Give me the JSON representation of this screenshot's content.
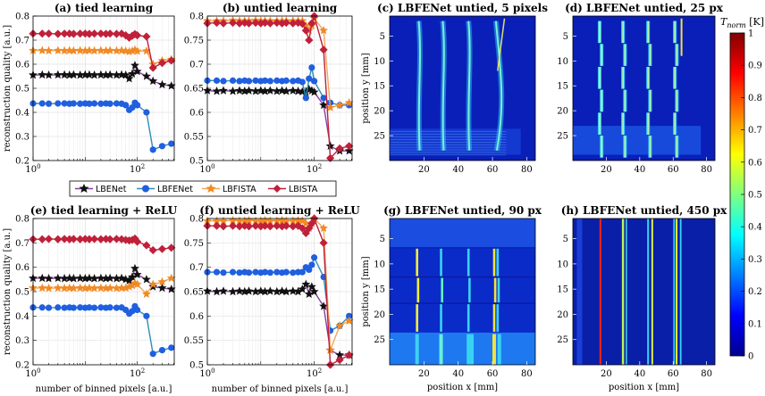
{
  "chart_data": [
    {
      "type": "line",
      "title": "(a) tied learning",
      "xlabel": "",
      "ylabel": "reconstruction quality [a.u.]",
      "xscale": "log",
      "xlim": [
        1,
        512
      ],
      "ylim": [
        0.2,
        0.8
      ],
      "xticks": [
        "10^0",
        "10^2"
      ],
      "yticks": [
        "0.2",
        "0.3",
        "0.4",
        "0.5",
        "0.6",
        "0.7",
        "0.8"
      ],
      "x": [
        1,
        1.5,
        2,
        3,
        4,
        5,
        6,
        8,
        10,
        12,
        15,
        20,
        25,
        30,
        40,
        50,
        60,
        70,
        80,
        90,
        100,
        150,
        200,
        300,
        450
      ],
      "series": [
        {
          "name": "LBENet",
          "values": [
            0.555,
            0.556,
            0.555,
            0.556,
            0.556,
            0.555,
            0.556,
            0.555,
            0.556,
            0.556,
            0.555,
            0.556,
            0.555,
            0.556,
            0.555,
            0.556,
            0.555,
            0.54,
            0.56,
            0.595,
            0.57,
            0.55,
            0.53,
            0.515,
            0.51
          ]
        },
        {
          "name": "LBFENet",
          "values": [
            0.437,
            0.437,
            0.436,
            0.437,
            0.437,
            0.436,
            0.437,
            0.436,
            0.437,
            0.436,
            0.437,
            0.436,
            0.437,
            0.436,
            0.437,
            0.436,
            0.43,
            0.41,
            0.42,
            0.44,
            0.43,
            0.4,
            0.245,
            0.26,
            0.27
          ]
        },
        {
          "name": "LBFISTA",
          "values": [
            0.657,
            0.657,
            0.656,
            0.657,
            0.656,
            0.657,
            0.656,
            0.657,
            0.656,
            0.657,
            0.656,
            0.657,
            0.656,
            0.657,
            0.656,
            0.657,
            0.655,
            0.652,
            0.655,
            0.66,
            0.654,
            0.655,
            0.6,
            0.615,
            0.62
          ]
        },
        {
          "name": "LBISTA",
          "values": [
            0.727,
            0.727,
            0.727,
            0.726,
            0.727,
            0.727,
            0.726,
            0.727,
            0.727,
            0.726,
            0.727,
            0.727,
            0.726,
            0.727,
            0.726,
            0.727,
            0.72,
            0.71,
            0.718,
            0.725,
            0.72,
            0.715,
            0.585,
            0.605,
            0.615
          ]
        }
      ]
    },
    {
      "type": "line",
      "title": "(b) untied learning",
      "xlabel": "",
      "ylabel": "",
      "xscale": "log",
      "xlim": [
        1,
        512
      ],
      "ylim": [
        0.5,
        0.8
      ],
      "xticks": [
        "10^0",
        "10^2"
      ],
      "yticks": [
        "0.5",
        "0.55",
        "0.6",
        "0.65",
        "0.7",
        "0.75",
        "0.8"
      ],
      "x": [
        1,
        1.5,
        2,
        3,
        4,
        5,
        6,
        8,
        10,
        12,
        15,
        20,
        25,
        30,
        40,
        50,
        60,
        70,
        80,
        90,
        100,
        150,
        200,
        300,
        450
      ],
      "series": [
        {
          "name": "LBENet",
          "values": [
            0.645,
            0.644,
            0.645,
            0.644,
            0.645,
            0.644,
            0.645,
            0.644,
            0.645,
            0.644,
            0.645,
            0.644,
            0.645,
            0.644,
            0.645,
            0.644,
            0.643,
            0.642,
            0.648,
            0.645,
            0.642,
            0.615,
            0.53,
            0.52,
            0.52
          ]
        },
        {
          "name": "LBFENet",
          "values": [
            0.666,
            0.666,
            0.665,
            0.666,
            0.665,
            0.666,
            0.665,
            0.666,
            0.665,
            0.666,
            0.665,
            0.666,
            0.665,
            0.666,
            0.665,
            0.666,
            0.663,
            0.63,
            0.67,
            0.693,
            0.665,
            0.63,
            0.62,
            0.615,
            0.615
          ]
        },
        {
          "name": "LBFISTA",
          "values": [
            0.79,
            0.79,
            0.79,
            0.791,
            0.79,
            0.79,
            0.79,
            0.791,
            0.79,
            0.79,
            0.79,
            0.79,
            0.79,
            0.79,
            0.79,
            0.79,
            0.79,
            0.78,
            0.77,
            0.78,
            0.795,
            0.77,
            0.61,
            0.615,
            0.62
          ]
        },
        {
          "name": "LBISTA",
          "values": [
            0.785,
            0.786,
            0.785,
            0.786,
            0.785,
            0.786,
            0.785,
            0.786,
            0.785,
            0.786,
            0.785,
            0.786,
            0.785,
            0.786,
            0.785,
            0.786,
            0.784,
            0.77,
            0.75,
            0.785,
            0.8,
            0.73,
            0.505,
            0.525,
            0.53
          ]
        }
      ]
    },
    {
      "type": "line",
      "title": "(e) tied learning + ReLU",
      "xlabel": "number of binned pixels [a.u.]",
      "ylabel": "reconstruction quality [a.u.]",
      "xscale": "log",
      "xlim": [
        1,
        512
      ],
      "ylim": [
        0.2,
        0.8
      ],
      "xticks": [
        "10^0",
        "10^2"
      ],
      "yticks": [
        "0.2",
        "0.3",
        "0.4",
        "0.5",
        "0.6",
        "0.7",
        "0.8"
      ],
      "x": [
        1,
        1.5,
        2,
        3,
        4,
        5,
        6,
        8,
        10,
        12,
        15,
        20,
        25,
        30,
        40,
        50,
        60,
        70,
        80,
        90,
        100,
        150,
        200,
        300,
        450
      ],
      "series": [
        {
          "name": "LBENet",
          "values": [
            0.555,
            0.555,
            0.554,
            0.555,
            0.554,
            0.555,
            0.554,
            0.555,
            0.554,
            0.555,
            0.554,
            0.555,
            0.554,
            0.555,
            0.554,
            0.555,
            0.55,
            0.545,
            0.56,
            0.595,
            0.57,
            0.55,
            0.52,
            0.515,
            0.51
          ]
        },
        {
          "name": "LBFENet",
          "values": [
            0.435,
            0.435,
            0.434,
            0.435,
            0.434,
            0.435,
            0.434,
            0.435,
            0.434,
            0.435,
            0.434,
            0.435,
            0.434,
            0.435,
            0.434,
            0.435,
            0.425,
            0.41,
            0.42,
            0.44,
            0.425,
            0.4,
            0.245,
            0.26,
            0.27
          ]
        },
        {
          "name": "LBFISTA",
          "values": [
            0.515,
            0.515,
            0.514,
            0.515,
            0.514,
            0.515,
            0.514,
            0.515,
            0.514,
            0.515,
            0.514,
            0.515,
            0.514,
            0.515,
            0.514,
            0.515,
            0.515,
            0.52,
            0.525,
            0.535,
            0.53,
            0.49,
            0.53,
            0.54,
            0.555
          ]
        },
        {
          "name": "LBISTA",
          "values": [
            0.715,
            0.715,
            0.716,
            0.715,
            0.716,
            0.715,
            0.716,
            0.715,
            0.716,
            0.715,
            0.716,
            0.715,
            0.716,
            0.715,
            0.716,
            0.715,
            0.712,
            0.71,
            0.712,
            0.718,
            0.705,
            0.69,
            0.67,
            0.675,
            0.68
          ]
        }
      ]
    },
    {
      "type": "line",
      "title": "(f) untied learning + ReLU",
      "xlabel": "number of binned pixels [a.u.]",
      "ylabel": "",
      "xscale": "log",
      "xlim": [
        1,
        512
      ],
      "ylim": [
        0.5,
        0.8
      ],
      "xticks": [
        "10^0",
        "10^2"
      ],
      "yticks": [
        "0.5",
        "0.55",
        "0.6",
        "0.65",
        "0.7",
        "0.75",
        "0.8"
      ],
      "x": [
        1,
        1.5,
        2,
        3,
        4,
        5,
        6,
        8,
        10,
        12,
        15,
        20,
        25,
        30,
        40,
        50,
        60,
        70,
        80,
        90,
        100,
        150,
        200,
        300,
        450
      ],
      "series": [
        {
          "name": "LBENet",
          "values": [
            0.651,
            0.65,
            0.651,
            0.65,
            0.651,
            0.65,
            0.651,
            0.65,
            0.651,
            0.65,
            0.651,
            0.65,
            0.651,
            0.65,
            0.651,
            0.65,
            0.655,
            0.665,
            0.645,
            0.66,
            0.65,
            0.62,
            0.53,
            0.52,
            0.52
          ]
        },
        {
          "name": "LBFENet",
          "values": [
            0.69,
            0.69,
            0.689,
            0.69,
            0.689,
            0.69,
            0.689,
            0.69,
            0.689,
            0.69,
            0.689,
            0.69,
            0.689,
            0.69,
            0.689,
            0.69,
            0.69,
            0.7,
            0.695,
            0.705,
            0.72,
            0.68,
            0.57,
            0.58,
            0.6
          ]
        },
        {
          "name": "LBFISTA",
          "values": [
            0.795,
            0.795,
            0.795,
            0.796,
            0.795,
            0.795,
            0.796,
            0.795,
            0.795,
            0.796,
            0.795,
            0.795,
            0.796,
            0.795,
            0.795,
            0.796,
            0.795,
            0.79,
            0.78,
            0.79,
            0.8,
            0.78,
            0.53,
            0.58,
            0.59
          ]
        },
        {
          "name": "LBISTA",
          "values": [
            0.785,
            0.785,
            0.784,
            0.785,
            0.784,
            0.785,
            0.784,
            0.785,
            0.784,
            0.785,
            0.784,
            0.785,
            0.784,
            0.785,
            0.784,
            0.785,
            0.78,
            0.77,
            0.78,
            0.79,
            0.8,
            0.75,
            0.5,
            0.51,
            0.52
          ]
        }
      ]
    },
    {
      "type": "heatmap",
      "title": "(c) LBFENet untied, 5 pixels",
      "xlabel": "",
      "ylabel": "position y [mm]",
      "xticks": [
        "20",
        "40",
        "60",
        "80"
      ],
      "yticks": [
        "5",
        "10",
        "15",
        "20",
        "25"
      ],
      "xlim": [
        0,
        85
      ],
      "ylim": [
        1,
        30
      ]
    },
    {
      "type": "heatmap",
      "title": "(d) LBFENet untied, 25 px",
      "xlabel": "",
      "ylabel": "",
      "xticks": [
        "20",
        "40",
        "60",
        "80"
      ],
      "yticks": [
        "5",
        "10",
        "15",
        "20",
        "25"
      ],
      "xlim": [
        0,
        85
      ],
      "ylim": [
        1,
        30
      ]
    },
    {
      "type": "heatmap",
      "title": "(g) LBFENet untied, 90 px",
      "xlabel": "position x [mm]",
      "ylabel": "position y [mm]",
      "xticks": [
        "20",
        "40",
        "60",
        "80"
      ],
      "yticks": [
        "5",
        "10",
        "15",
        "20",
        "25"
      ],
      "xlim": [
        0,
        85
      ],
      "ylim": [
        1,
        30
      ]
    },
    {
      "type": "heatmap",
      "title": "(h) LBFENet untied, 450 px",
      "xlabel": "position x [mm]",
      "ylabel": "",
      "xticks": [
        "20",
        "40",
        "60",
        "80"
      ],
      "yticks": [
        "5",
        "10",
        "15",
        "20",
        "25"
      ],
      "xlim": [
        0,
        85
      ],
      "ylim": [
        1,
        30
      ]
    }
  ],
  "legend": [
    "LBENet",
    "LBFENet",
    "LBFISTA",
    "LBISTA"
  ],
  "colorbar": {
    "label": "T_norm [K]",
    "label_main": "T",
    "label_sub": "norm",
    "label_unit": "[K]",
    "ticks": [
      "0",
      "0.1",
      "0.2",
      "0.3",
      "0.4",
      "0.5",
      "0.6",
      "0.7",
      "0.8",
      "0.9",
      "1"
    ]
  },
  "colors": {
    "LBENet": "#111111",
    "LBFENet": "#1f5fe0",
    "LBFISTA": "#f08a24",
    "LBISTA": "#c0203a",
    "LBENet_line": "#8b3fa0",
    "LBFENet_line": "#2c8fb5",
    "LBFISTA_line": "#f2a65a",
    "LBISTA_line": "#c0203a"
  }
}
